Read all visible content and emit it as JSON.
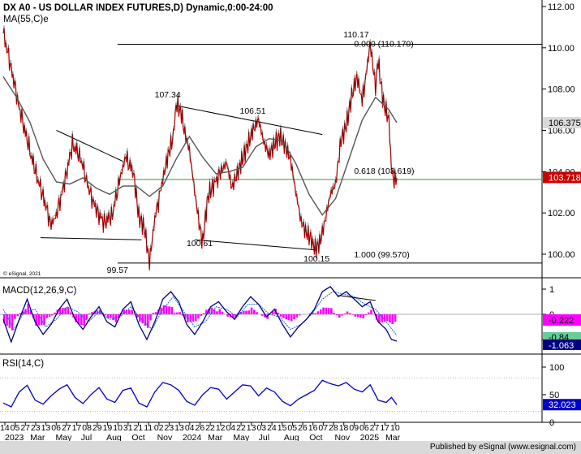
{
  "chart_data": [
    {
      "type": "candlestick",
      "title": "DX A0 - US DOLLAR INDEX FUTURES,D) Dynamic,0:00-24:00",
      "indicator_label": "MA(55,C)e",
      "copyright": "© eSignal, 2021",
      "ylim": [
        99.0,
        112.0
      ],
      "y_ticks": [
        "112.00",
        "110.00",
        "108.00",
        "106.00",
        "104.00",
        "102.00",
        "100.00"
      ],
      "last_price_label": "103.718",
      "last_price": 103.718,
      "ma_value_label": "106.375",
      "ma_value": 106.375,
      "price_path": [
        [
          0,
          110.7
        ],
        [
          3,
          109.0
        ],
        [
          6,
          107.1
        ],
        [
          9,
          105.5
        ],
        [
          12,
          104.0
        ],
        [
          15,
          102.8
        ],
        [
          18,
          101.4
        ],
        [
          20,
          101.9
        ],
        [
          23,
          103.4
        ],
        [
          26,
          105.3
        ],
        [
          29,
          104.7
        ],
        [
          32,
          103.2
        ],
        [
          35,
          102.1
        ],
        [
          38,
          101.5
        ],
        [
          41,
          101.9
        ],
        [
          44,
          103.7
        ],
        [
          46,
          104.7
        ],
        [
          49,
          103.9
        ],
        [
          51,
          101.8
        ],
        [
          53,
          101.3
        ],
        [
          55,
          99.6
        ],
        [
          57,
          101.7
        ],
        [
          60,
          103.6
        ],
        [
          62,
          104.8
        ],
        [
          64,
          105.7
        ],
        [
          65,
          107.3
        ],
        [
          67,
          106.8
        ],
        [
          68,
          106.0
        ],
        [
          70,
          105.0
        ],
        [
          72,
          103.0
        ],
        [
          74,
          101.2
        ],
        [
          75,
          100.6
        ],
        [
          77,
          102.8
        ],
        [
          79,
          103.3
        ],
        [
          82,
          104.0
        ],
        [
          84,
          104.4
        ],
        [
          86,
          103.2
        ],
        [
          88,
          103.9
        ],
        [
          90,
          104.6
        ],
        [
          92,
          105.3
        ],
        [
          94,
          106.0
        ],
        [
          96,
          106.5
        ],
        [
          98,
          105.4
        ],
        [
          100,
          104.8
        ],
        [
          102,
          105.3
        ],
        [
          104,
          105.7
        ],
        [
          106,
          105.2
        ],
        [
          108,
          104.6
        ],
        [
          110,
          103.0
        ],
        [
          112,
          101.6
        ],
        [
          114,
          101.0
        ],
        [
          116,
          100.7
        ],
        [
          117,
          100.2
        ],
        [
          119,
          100.5
        ],
        [
          121,
          101.6
        ],
        [
          123,
          102.9
        ],
        [
          125,
          103.4
        ],
        [
          127,
          105.5
        ],
        [
          129,
          106.2
        ],
        [
          131,
          107.6
        ],
        [
          133,
          108.6
        ],
        [
          135,
          107.4
        ],
        [
          136,
          108.3
        ],
        [
          138,
          110.17
        ],
        [
          140,
          108.1
        ],
        [
          141,
          109.3
        ],
        [
          143,
          107.3
        ],
        [
          145,
          106.5
        ],
        [
          146,
          104.1
        ],
        [
          147,
          103.5
        ],
        [
          148,
          103.7
        ]
      ],
      "ma_path": [
        [
          0,
          108.6
        ],
        [
          5,
          107.6
        ],
        [
          10,
          106.4
        ],
        [
          15,
          104.6
        ],
        [
          20,
          103.5
        ],
        [
          25,
          103.4
        ],
        [
          30,
          103.7
        ],
        [
          35,
          103.2
        ],
        [
          40,
          102.9
        ],
        [
          45,
          103.3
        ],
        [
          50,
          103.3
        ],
        [
          55,
          102.8
        ],
        [
          60,
          103.3
        ],
        [
          65,
          104.6
        ],
        [
          70,
          105.7
        ],
        [
          75,
          104.7
        ],
        [
          80,
          103.9
        ],
        [
          85,
          104.0
        ],
        [
          90,
          104.2
        ],
        [
          95,
          105.2
        ],
        [
          100,
          105.6
        ],
        [
          105,
          105.5
        ],
        [
          110,
          104.4
        ],
        [
          115,
          102.9
        ],
        [
          120,
          101.9
        ],
        [
          125,
          102.7
        ],
        [
          130,
          104.6
        ],
        [
          135,
          106.5
        ],
        [
          140,
          107.6
        ],
        [
          145,
          107.0
        ],
        [
          148,
          106.375
        ]
      ],
      "trendlines": [
        {
          "from": [
            20,
            106.0
          ],
          "to": [
            45,
            104.5
          ]
        },
        {
          "from": [
            14,
            100.8
          ],
          "to": [
            52,
            100.7
          ]
        },
        {
          "from": [
            65,
            107.2
          ],
          "to": [
            120,
            105.8
          ]
        },
        {
          "from": [
            72,
            100.7
          ],
          "to": [
            118,
            100.2
          ]
        },
        {
          "from": [
            43,
            110.17
          ],
          "to": [
            148,
            110.17
          ]
        },
        {
          "from": [
            43,
            99.57
          ],
          "to": [
            148,
            99.57
          ]
        },
        {
          "from": [
            43,
            103.619
          ],
          "to": [
            148,
            103.619
          ],
          "color": "#2e9b2e"
        }
      ],
      "annotations": [
        {
          "text": "107.34",
          "at": [
            60,
            107.6
          ]
        },
        {
          "text": "106.51",
          "at": [
            92,
            106.8
          ]
        },
        {
          "text": "110.17",
          "at": [
            131,
            110.5
          ]
        },
        {
          "text": "0.000 (110.170)",
          "at": [
            135,
            110.05
          ]
        },
        {
          "text": "0.618 (103.619)",
          "at": [
            135,
            103.9
          ]
        },
        {
          "text": "100.61",
          "at": [
            72,
            100.4
          ]
        },
        {
          "text": "100.15",
          "at": [
            116,
            99.65
          ]
        },
        {
          "text": "99.57",
          "at": [
            42,
            99.1
          ]
        },
        {
          "text": "1.000 (99.570)",
          "at": [
            135,
            99.85
          ]
        }
      ]
    },
    {
      "type": "line",
      "title": "MACD(12,26,9,C)",
      "ylim": [
        -1.5,
        1.5
      ],
      "y_ticks": [
        "1",
        "0",
        "-1"
      ],
      "macd_label": "-1.063",
      "signal_label": "-0.84",
      "hist_label": "-0.222",
      "macd_path": [
        [
          0,
          -0.2
        ],
        [
          3,
          -1.1
        ],
        [
          6,
          -0.2
        ],
        [
          9,
          0.6
        ],
        [
          12,
          -0.3
        ],
        [
          15,
          -0.8
        ],
        [
          18,
          -0.4
        ],
        [
          21,
          0.2
        ],
        [
          24,
          0.6
        ],
        [
          27,
          -0.2
        ],
        [
          30,
          -0.6
        ],
        [
          33,
          -0.1
        ],
        [
          36,
          0.3
        ],
        [
          39,
          -0.3
        ],
        [
          42,
          -0.5
        ],
        [
          45,
          0.2
        ],
        [
          48,
          0.5
        ],
        [
          51,
          -0.4
        ],
        [
          54,
          -1.0
        ],
        [
          57,
          -0.3
        ],
        [
          60,
          0.6
        ],
        [
          63,
          0.9
        ],
        [
          66,
          0.5
        ],
        [
          69,
          -0.4
        ],
        [
          72,
          -0.8
        ],
        [
          75,
          -0.3
        ],
        [
          78,
          0.3
        ],
        [
          81,
          0.5
        ],
        [
          84,
          0.1
        ],
        [
          87,
          -0.2
        ],
        [
          90,
          0.3
        ],
        [
          93,
          0.7
        ],
        [
          96,
          0.4
        ],
        [
          99,
          -0.1
        ],
        [
          102,
          0.2
        ],
        [
          105,
          -0.4
        ],
        [
          108,
          -0.9
        ],
        [
          111,
          -0.5
        ],
        [
          114,
          -0.2
        ],
        [
          117,
          0.2
        ],
        [
          120,
          0.9
        ],
        [
          123,
          1.1
        ],
        [
          126,
          0.7
        ],
        [
          129,
          0.9
        ],
        [
          132,
          0.6
        ],
        [
          135,
          0.3
        ],
        [
          138,
          0.5
        ],
        [
          141,
          -0.3
        ],
        [
          144,
          -0.6
        ],
        [
          146,
          -1.0
        ],
        [
          148,
          -1.063
        ]
      ],
      "signal_path": [
        [
          0,
          0.2
        ],
        [
          4,
          -0.6
        ],
        [
          8,
          0.1
        ],
        [
          12,
          0.2
        ],
        [
          16,
          -0.5
        ],
        [
          20,
          -0.2
        ],
        [
          24,
          0.3
        ],
        [
          28,
          0.1
        ],
        [
          32,
          -0.3
        ],
        [
          36,
          0.1
        ],
        [
          40,
          -0.2
        ],
        [
          44,
          -0.1
        ],
        [
          48,
          0.3
        ],
        [
          52,
          -0.2
        ],
        [
          56,
          -0.6
        ],
        [
          60,
          0.2
        ],
        [
          64,
          0.7
        ],
        [
          68,
          0.1
        ],
        [
          72,
          -0.5
        ],
        [
          76,
          -0.3
        ],
        [
          80,
          0.3
        ],
        [
          84,
          0.2
        ],
        [
          88,
          -0.1
        ],
        [
          92,
          0.4
        ],
        [
          96,
          0.4
        ],
        [
          100,
          0.0
        ],
        [
          104,
          -0.1
        ],
        [
          108,
          -0.6
        ],
        [
          112,
          -0.4
        ],
        [
          116,
          0.0
        ],
        [
          120,
          0.6
        ],
        [
          124,
          0.9
        ],
        [
          128,
          0.8
        ],
        [
          132,
          0.7
        ],
        [
          136,
          0.4
        ],
        [
          140,
          0.2
        ],
        [
          144,
          -0.3
        ],
        [
          148,
          -0.84
        ]
      ],
      "trendline": {
        "from": [
          126,
          0.75
        ],
        "to": [
          140,
          0.55
        ]
      }
    },
    {
      "type": "line",
      "title": "RSI(14,C)",
      "ylim": [
        0,
        100
      ],
      "y_ticks": [
        "100",
        "50",
        "0"
      ],
      "reference_lines": [
        80,
        20
      ],
      "value_label": "32.023",
      "rsi_path": [
        [
          0,
          35
        ],
        [
          3,
          28
        ],
        [
          6,
          55
        ],
        [
          9,
          67
        ],
        [
          12,
          40
        ],
        [
          15,
          33
        ],
        [
          18,
          48
        ],
        [
          21,
          60
        ],
        [
          24,
          68
        ],
        [
          27,
          45
        ],
        [
          30,
          34
        ],
        [
          33,
          50
        ],
        [
          36,
          63
        ],
        [
          39,
          42
        ],
        [
          42,
          36
        ],
        [
          45,
          58
        ],
        [
          48,
          62
        ],
        [
          51,
          35
        ],
        [
          54,
          28
        ],
        [
          57,
          55
        ],
        [
          60,
          72
        ],
        [
          63,
          68
        ],
        [
          66,
          58
        ],
        [
          69,
          38
        ],
        [
          72,
          31
        ],
        [
          75,
          50
        ],
        [
          78,
          63
        ],
        [
          81,
          60
        ],
        [
          84,
          42
        ],
        [
          87,
          55
        ],
        [
          90,
          68
        ],
        [
          93,
          66
        ],
        [
          96,
          48
        ],
        [
          99,
          62
        ],
        [
          102,
          55
        ],
        [
          105,
          38
        ],
        [
          108,
          30
        ],
        [
          111,
          42
        ],
        [
          114,
          50
        ],
        [
          117,
          58
        ],
        [
          120,
          76
        ],
        [
          123,
          70
        ],
        [
          126,
          66
        ],
        [
          129,
          72
        ],
        [
          132,
          60
        ],
        [
          135,
          55
        ],
        [
          138,
          68
        ],
        [
          141,
          40
        ],
        [
          144,
          36
        ],
        [
          146,
          45
        ],
        [
          148,
          32
        ]
      ]
    }
  ],
  "x_axis": {
    "days": [
      "14",
      "05",
      "27",
      "23",
      "13",
      "06",
      "27",
      "17",
      "08",
      "29",
      "19",
      "10",
      "31",
      "21",
      "11",
      "02",
      "23",
      "13",
      "04",
      "26",
      "22",
      "12",
      "04",
      "22",
      "13",
      "03",
      "24",
      "15",
      "05",
      "26",
      "16",
      "07",
      "28",
      "18",
      "09",
      "06",
      "27",
      "17",
      "10"
    ],
    "months": [
      "2023",
      "Mar",
      "May",
      "Jul",
      "Aug",
      "Oct",
      "Nov",
      "2024",
      "Mar",
      "May",
      "Jul",
      "Aug",
      "Oct",
      "Nov",
      "2025",
      "Mar"
    ]
  },
  "footer": "Published by eSignal (www.esignal.com)"
}
